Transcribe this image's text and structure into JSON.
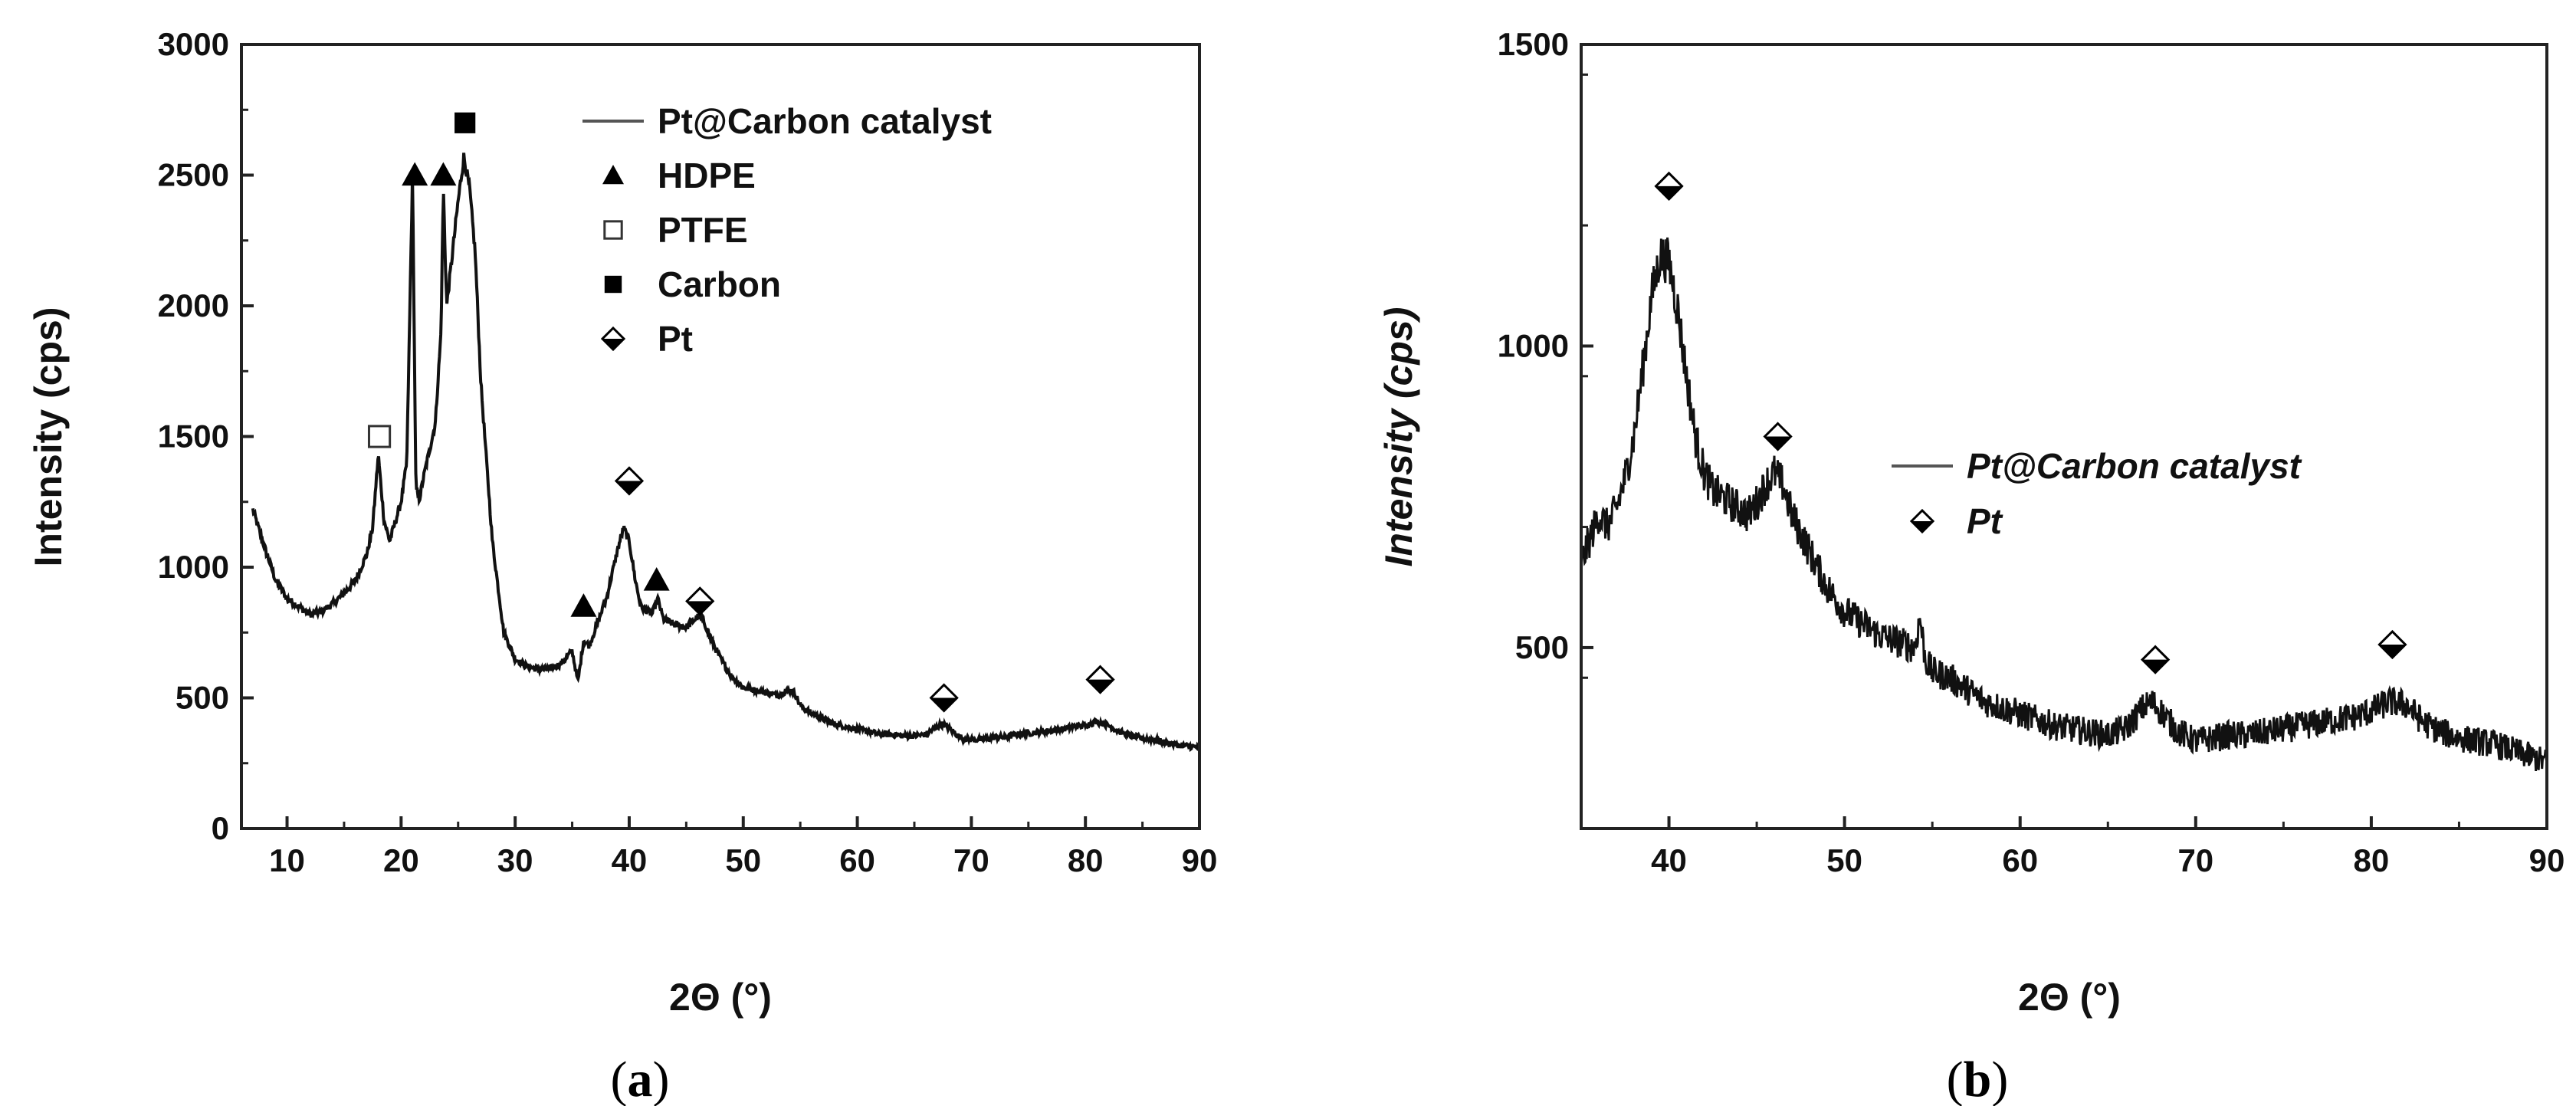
{
  "chart_data": [
    {
      "id": "a",
      "type": "line",
      "panel_label": "a",
      "xlabel": "2Θ (°)",
      "ylabel": "Intensity (cps)",
      "xlim": [
        6,
        90
      ],
      "ylim": [
        0,
        3000
      ],
      "xticks": [
        10,
        20,
        30,
        40,
        50,
        60,
        70,
        80,
        90
      ],
      "yticks": [
        0,
        500,
        1000,
        1500,
        2000,
        2500,
        3000
      ],
      "series": [
        {
          "name": "Pt@Carbon catalyst",
          "x": [
            7,
            8,
            9,
            10,
            11,
            12,
            13,
            14,
            15,
            16,
            17,
            17.5,
            18,
            18.5,
            19,
            20,
            20.5,
            21,
            21.3,
            21.6,
            22,
            22.5,
            23,
            23.5,
            23.7,
            24,
            24.5,
            25,
            25.5,
            26,
            26.5,
            27,
            28,
            29,
            30,
            31,
            32,
            33,
            34,
            35,
            35.5,
            36,
            36.5,
            37,
            38,
            39,
            39.5,
            40,
            40.5,
            41,
            42,
            42.5,
            43,
            44,
            45,
            46,
            46.5,
            47,
            48,
            49,
            50,
            51,
            52,
            53,
            54,
            54.5,
            55,
            56,
            57,
            58,
            59,
            60,
            61,
            62,
            63,
            64,
            65,
            66,
            67,
            67.5,
            68,
            69,
            70,
            71,
            72,
            73,
            74,
            75,
            76,
            77,
            78,
            79,
            80,
            81,
            82,
            83,
            84,
            85,
            86,
            87,
            88,
            89,
            90
          ],
          "y": [
            1220,
            1080,
            950,
            880,
            850,
            820,
            830,
            860,
            900,
            950,
            1050,
            1150,
            1430,
            1180,
            1100,
            1250,
            1400,
            2500,
            1300,
            1260,
            1350,
            1450,
            1550,
            1900,
            2450,
            2000,
            2200,
            2400,
            2570,
            2450,
            2200,
            1700,
            1100,
            750,
            650,
            620,
            610,
            610,
            630,
            680,
            560,
            720,
            700,
            760,
            880,
            1070,
            1150,
            1100,
            960,
            850,
            820,
            880,
            800,
            780,
            770,
            810,
            800,
            740,
            650,
            580,
            540,
            530,
            520,
            510,
            530,
            520,
            470,
            440,
            420,
            400,
            390,
            380,
            370,
            360,
            360,
            355,
            355,
            360,
            390,
            400,
            385,
            350,
            340,
            340,
            350,
            350,
            360,
            365,
            370,
            375,
            380,
            390,
            395,
            410,
            395,
            370,
            355,
            345,
            340,
            330,
            320,
            315,
            310
          ]
        }
      ],
      "markers": [
        {
          "label": "HDPE",
          "symbol": "triangle",
          "points": [
            [
              21.2,
              2500
            ],
            [
              23.7,
              2500
            ],
            [
              36,
              850
            ],
            [
              42.4,
              950
            ]
          ]
        },
        {
          "label": "PTFE",
          "symbol": "open-square",
          "points": [
            [
              18.1,
              1500
            ]
          ]
        },
        {
          "label": "Carbon",
          "symbol": "filled-square",
          "points": [
            [
              25.6,
              2700
            ]
          ]
        },
        {
          "label": "Pt",
          "symbol": "half-diamond",
          "points": [
            [
              40,
              1330
            ],
            [
              46.2,
              870
            ],
            [
              67.6,
              500
            ],
            [
              81.3,
              570
            ]
          ]
        }
      ],
      "legend": [
        {
          "label": "Pt@Carbon catalyst",
          "symbol": "line"
        },
        {
          "label": "HDPE",
          "symbol": "triangle"
        },
        {
          "label": "PTFE",
          "symbol": "open-square"
        },
        {
          "label": "Carbon",
          "symbol": "filled-square"
        },
        {
          "label": "Pt",
          "symbol": "half-diamond"
        }
      ],
      "legend_position": "top-right"
    },
    {
      "id": "b",
      "type": "line",
      "panel_label": "b",
      "xlabel": "2Θ (°)",
      "ylabel": "Intensity (cps)",
      "xlim": [
        35,
        90
      ],
      "ylim": [
        200,
        1500
      ],
      "xticks": [
        40,
        50,
        60,
        70,
        80,
        90
      ],
      "yticks": [
        500,
        1000,
        1500
      ],
      "series": [
        {
          "name": "Pt@Carbon catalyst",
          "x": [
            35,
            35.5,
            36,
            36.5,
            37,
            37.5,
            38,
            38.5,
            39,
            39.5,
            40,
            40.5,
            41,
            41.5,
            42,
            42.5,
            43,
            43.5,
            44,
            44.5,
            45,
            45.5,
            46,
            46.5,
            47,
            47.5,
            48,
            48.5,
            49,
            50,
            51,
            52,
            53,
            54,
            54.3,
            54.6,
            55,
            56,
            57,
            58,
            59,
            60,
            61,
            62,
            63,
            64,
            65,
            66,
            67,
            67.5,
            68,
            69,
            70,
            71,
            72,
            73,
            74,
            75,
            76,
            77,
            78,
            79,
            80,
            81,
            82,
            83,
            84,
            85,
            86,
            87,
            88,
            89,
            90
          ],
          "y": [
            640,
            680,
            720,
            700,
            730,
            780,
            850,
            960,
            1080,
            1150,
            1140,
            1060,
            950,
            850,
            790,
            760,
            750,
            740,
            730,
            720,
            740,
            770,
            790,
            770,
            720,
            690,
            660,
            630,
            600,
            560,
            540,
            520,
            510,
            500,
            550,
            480,
            460,
            450,
            430,
            410,
            400,
            390,
            380,
            370,
            365,
            360,
            355,
            365,
            400,
            410,
            395,
            360,
            345,
            350,
            355,
            355,
            360,
            365,
            370,
            375,
            380,
            385,
            395,
            410,
            405,
            375,
            360,
            350,
            345,
            340,
            330,
            320,
            310
          ]
        }
      ],
      "markers": [
        {
          "label": "Pt",
          "symbol": "half-diamond",
          "points": [
            [
              40,
              1265
            ],
            [
              46.2,
              850
            ],
            [
              67.7,
              480
            ],
            [
              81.2,
              505
            ]
          ]
        }
      ],
      "legend": [
        {
          "label": "Pt@Carbon catalyst",
          "symbol": "line"
        },
        {
          "label": "Pt",
          "symbol": "half-diamond"
        }
      ],
      "legend_position": "center-right"
    }
  ]
}
